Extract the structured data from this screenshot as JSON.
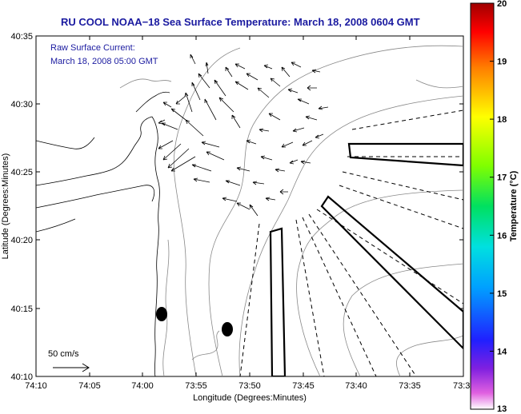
{
  "title": "RU COOL  NOAA−18  Sea Surface Temperature:  March 18, 2008 0604 GMT",
  "legend_note": {
    "line1": "Raw Surface Current:",
    "line2": "March 18, 2008 05:00 GMT"
  },
  "scale_label": "50 cm/s",
  "x_axis": {
    "label": "Longitude (Degrees:Minutes)",
    "ticks": [
      "74:10",
      "74:05",
      "74:00",
      "73:55",
      "73:50",
      "73:45",
      "73:40",
      "73:35",
      "73:3"
    ]
  },
  "y_axis": {
    "label": "Latitude (Degrees:Minutes)",
    "ticks": [
      "40:35",
      "40:30",
      "40:25",
      "40:20",
      "40:15",
      "40:10"
    ]
  },
  "colorbar": {
    "label": "Temperature (°C)",
    "ticks": [
      "20",
      "19",
      "18",
      "17",
      "16",
      "15",
      "14",
      "13"
    ],
    "min": 13,
    "max": 20
  },
  "colors": {
    "title": "#1a1aa0",
    "contour": "#888888"
  }
}
